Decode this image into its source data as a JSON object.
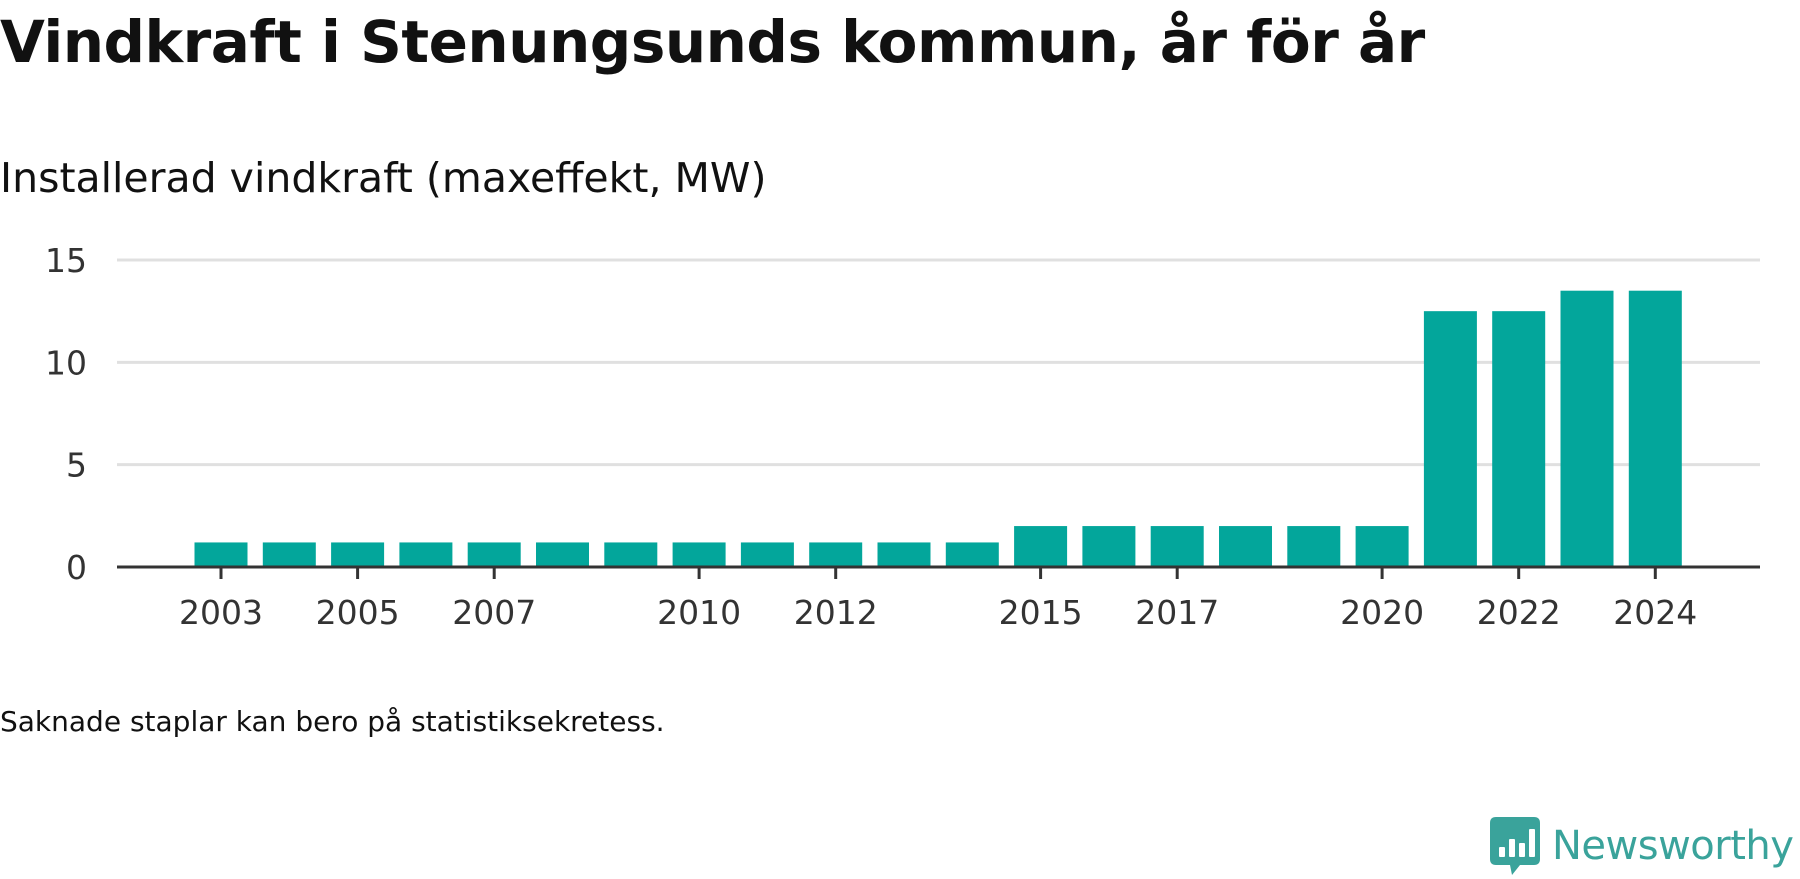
{
  "title": "Vindkraft i Stenungsunds kommun, år för år",
  "subtitle": "Installerad vindkraft (maxeffekt, MW)",
  "note": "Saknade staplar kan bero på statistiksekretess.",
  "brand": {
    "name": "Newsworthy",
    "icon": "newsworthy-logo-icon",
    "color": "#3aa39b"
  },
  "chart_data": {
    "type": "bar",
    "categories": [
      2003,
      2004,
      2005,
      2006,
      2007,
      2008,
      2009,
      2010,
      2011,
      2012,
      2013,
      2014,
      2015,
      2016,
      2017,
      2018,
      2019,
      2020,
      2021,
      2022,
      2023,
      2024
    ],
    "values": [
      1.2,
      1.2,
      1.2,
      1.2,
      1.2,
      1.2,
      1.2,
      1.2,
      1.2,
      1.2,
      1.2,
      1.2,
      2,
      2,
      2,
      2,
      2,
      2,
      12.5,
      12.5,
      13.5,
      13.5
    ],
    "x_tick_labels": [
      "2003",
      "2005",
      "2007",
      "2010",
      "2012",
      "2015",
      "2017",
      "2020",
      "2022",
      "2024"
    ],
    "y_ticks": [
      0,
      5,
      10,
      15
    ],
    "ylim": [
      0,
      15
    ],
    "xlabel": "",
    "ylabel": "",
    "grid": true,
    "legend": "none",
    "bar_color": "#03a69b",
    "grid_color": "#e0e0e0",
    "axis_color": "#333333"
  }
}
